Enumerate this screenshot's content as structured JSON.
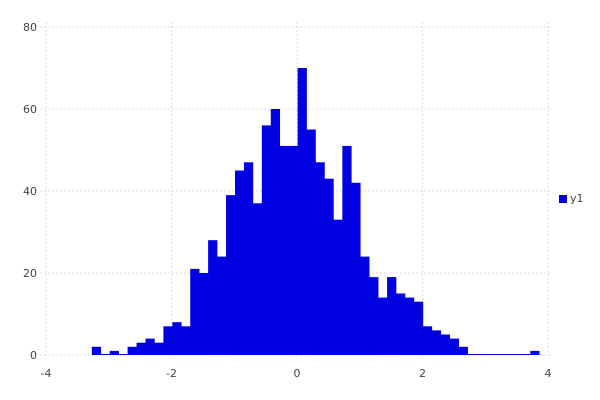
{
  "chart_data": {
    "type": "bar",
    "subtype": "histogram",
    "bin_start": -3.27,
    "bin_width": 0.1426,
    "values": [
      2,
      0,
      1,
      0,
      2,
      3,
      4,
      3,
      7,
      8,
      7,
      21,
      20,
      28,
      24,
      39,
      45,
      47,
      37,
      56,
      60,
      51,
      51,
      70,
      55,
      47,
      43,
      33,
      51,
      42,
      24,
      19,
      14,
      19,
      15,
      14,
      13,
      7,
      6,
      5,
      4,
      2,
      0,
      0,
      0,
      0,
      0,
      0,
      0,
      1
    ],
    "series": [
      {
        "name": "y1",
        "color": "#0000e0"
      }
    ],
    "xlim": [
      -4,
      4
    ],
    "ylim": [
      0,
      80
    ],
    "xticks": [
      "-4",
      "-2",
      "0",
      "2",
      "4"
    ],
    "yticks": [
      "0",
      "20",
      "40",
      "60",
      "80"
    ],
    "grid": true,
    "legend_placement": "right"
  }
}
